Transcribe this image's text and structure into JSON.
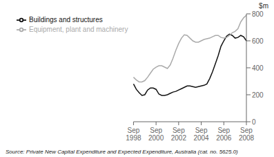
{
  "chart_data": {
    "type": "line",
    "ylabel": "$m",
    "annotations": [
      "Source: Private New Capital Expenditure and Expected Expenditure, Australia (cat. no. 5625.0)"
    ],
    "categories": [
      "Sep\n1998",
      null,
      null,
      null,
      null,
      null,
      null,
      null,
      "Sep\n2000",
      null,
      null,
      null,
      null,
      null,
      null,
      null,
      "Sep\n2002",
      null,
      null,
      null,
      null,
      null,
      null,
      null,
      "Sep\n2004",
      null,
      null,
      null,
      null,
      null,
      null,
      null,
      "Sep\n2006",
      null,
      null,
      null,
      null,
      null,
      null,
      null,
      "Sep\n2008"
    ],
    "series": [
      {
        "name": "Buildings and structures",
        "color": "#111111",
        "values": [
          280,
          240,
          215,
          195,
          200,
          235,
          250,
          250,
          240,
          205,
          195,
          195,
          200,
          210,
          220,
          225,
          235,
          245,
          255,
          265,
          265,
          260,
          255,
          260,
          265,
          270,
          280,
          320,
          370,
          430,
          490,
          560,
          600,
          635,
          650,
          640,
          620,
          625,
          640,
          630,
          600
        ]
      },
      {
        "name": "Equipment, plant and machinery",
        "color": "#aaaaaa",
        "values": [
          330,
          310,
          295,
          295,
          305,
          330,
          360,
          390,
          405,
          415,
          415,
          405,
          395,
          420,
          470,
          530,
          580,
          620,
          645,
          640,
          620,
          600,
          590,
          590,
          600,
          610,
          615,
          620,
          630,
          640,
          640,
          625,
          620,
          625,
          640,
          660,
          670,
          690,
          740,
          770,
          790
        ]
      }
    ],
    "ylim": [
      0,
      800
    ],
    "yticks": [
      0,
      200,
      400,
      600,
      800
    ],
    "grid": false,
    "legend": "upper left"
  }
}
